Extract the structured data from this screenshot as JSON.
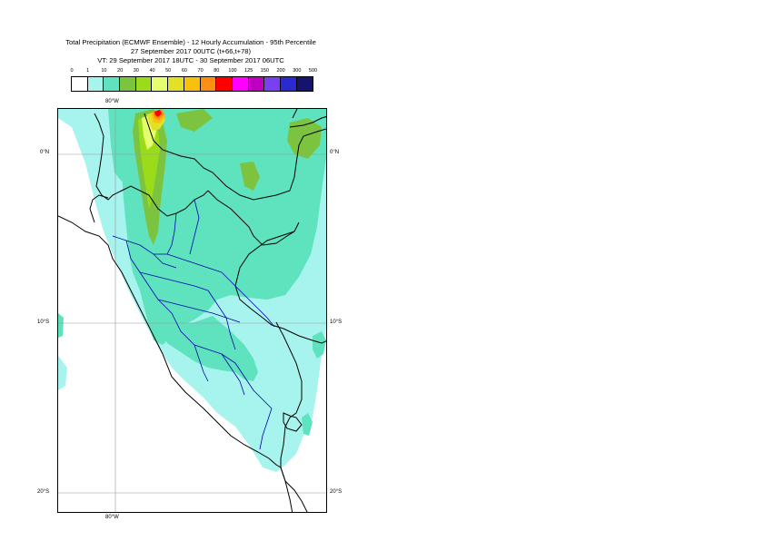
{
  "title": {
    "line1": "Total Precipitation (ECMWF Ensemble) - 12 Hourly Accumulation - 95th Percentile",
    "line2": "27 September 2017 00UTC (t+66,t+78)",
    "line3": "VT: 29 September 2017 18UTC - 30 September 2017 06UTC"
  },
  "legend": {
    "labels": [
      "0",
      "1",
      "10",
      "20",
      "30",
      "40",
      "50",
      "60",
      "70",
      "80",
      "100",
      "125",
      "150",
      "200",
      "300",
      "500"
    ],
    "colors": [
      "#ffffff",
      "#a7f3ee",
      "#5ee3be",
      "#7cc440",
      "#9adc1a",
      "#e5ff6e",
      "#e3e127",
      "#f9c00d",
      "#ff8e15",
      "#ff0000",
      "#ff00ff",
      "#c000c0",
      "#7a3ff0",
      "#2a2ad0",
      "#14146e"
    ]
  },
  "axes": {
    "top_lon": "80°W",
    "bottom_lon": "80°W",
    "lat_left": [
      "0°N",
      "10°S",
      "20°S"
    ],
    "lat_right": [
      "0°N",
      "10°S",
      "20°S"
    ]
  }
}
